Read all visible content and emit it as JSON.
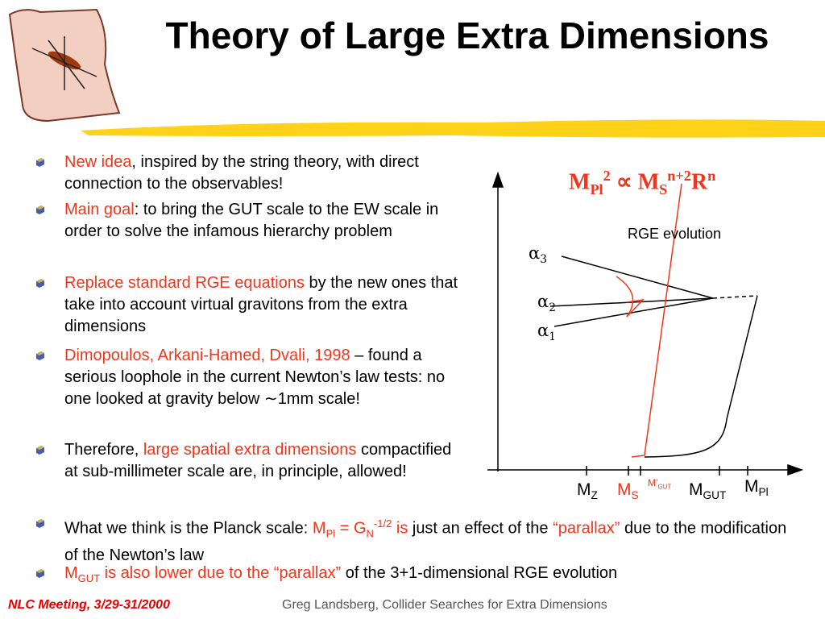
{
  "title": "Theory of Large Extra Dimensions",
  "bullets": [
    [
      {
        "text": "New idea",
        "color": "#f0361c"
      },
      {
        "text": ", inspired by the string theory, with direct connection to the observables!"
      }
    ],
    [
      {
        "text": "Main goal",
        "color": "#f0361c"
      },
      {
        "text": ": to bring the GUT scale to the EW scale in order to solve the infamous hierarchy problem"
      }
    ],
    [
      {
        "text": "Replace standard RGE equations",
        "color": "#f0361c"
      },
      {
        "text": " by the new ones that take into account virtual gravitons from the extra dimensions"
      }
    ],
    [
      {
        "text": "Dimopoulos, Arkani-Hamed, Dvali, 1998",
        "color": "#f0361c"
      },
      {
        "text": " – found a serious loophole in the current Newton’s law tests: no one looked at gravity below ∼1mm scale!"
      }
    ],
    [
      {
        "text": "Therefore, "
      },
      {
        "text": "large spatial extra dimensions",
        "color": "#f0361c"
      },
      {
        "text": " compactified at sub-millimeter scale are, in principle, allowed!"
      }
    ],
    [
      {
        "text": "What we think is the Planck scale: "
      },
      {
        "text": "M",
        "color": "#f0361c"
      },
      {
        "text": "Pl",
        "color": "#f0361c",
        "pos": "sub"
      },
      {
        "text": " = G",
        "color": "#f0361c"
      },
      {
        "text": "N",
        "color": "#f0361c",
        "pos": "sub"
      },
      {
        "text": "-1/2",
        "color": "#f0361c",
        "pos": "sup"
      },
      {
        "text": " is",
        "color": "#f0361c"
      },
      {
        "text": " just an effect of the "
      },
      {
        "text": "“parallax”",
        "color": "#f0361c"
      },
      {
        "text": " due to the modification of the Newton’s law"
      }
    ],
    [
      {
        "text": "M",
        "color": "#f0361c"
      },
      {
        "text": "GUT",
        "color": "#f0361c",
        "pos": "sub"
      },
      {
        "text": " is also lower due to the “parallax”",
        "color": "#f0361c"
      },
      {
        "text": " of the 3+1-dimensional RGE evolution"
      }
    ]
  ],
  "diagram": {
    "formula": [
      {
        "text": "M"
      },
      {
        "text": "Pl",
        "pos": "sub"
      },
      {
        "text": "2",
        "pos": "sup"
      },
      {
        "text": " ∝ M"
      },
      {
        "text": "S",
        "pos": "sub"
      },
      {
        "text": "n+2",
        "pos": "sup"
      },
      {
        "text": "R"
      },
      {
        "text": "n",
        "pos": "sup"
      }
    ],
    "caption": "RGE evolution",
    "alpha3": [
      {
        "text": "α"
      },
      {
        "text": "3",
        "pos": "sub"
      }
    ],
    "alpha2": [
      {
        "text": "α"
      },
      {
        "text": "2",
        "pos": "sub"
      }
    ],
    "alpha1": [
      {
        "text": "α"
      },
      {
        "text": "1",
        "pos": "sub"
      }
    ],
    "mz": [
      {
        "text": "M"
      },
      {
        "text": "Z",
        "pos": "sub"
      }
    ],
    "ms": [
      {
        "text": "M",
        "color": "#f0361c"
      },
      {
        "text": "S",
        "color": "#f0361c",
        "pos": "sub"
      }
    ],
    "mgut_prime": [
      {
        "text": "M’",
        "color": "#f0361c"
      },
      {
        "text": "GUT",
        "color": "#f0361c",
        "pos": "sub"
      }
    ],
    "mgut": [
      {
        "text": "M"
      },
      {
        "text": "GUT",
        "pos": "sub"
      }
    ],
    "mpl": [
      {
        "text": "M"
      },
      {
        "text": "Pl",
        "pos": "sub"
      }
    ]
  },
  "footer": {
    "left": "NLC Meeting, 3/29-31/2000",
    "right": "Greg Landsberg, Collider Searches for Extra Dimensions"
  }
}
